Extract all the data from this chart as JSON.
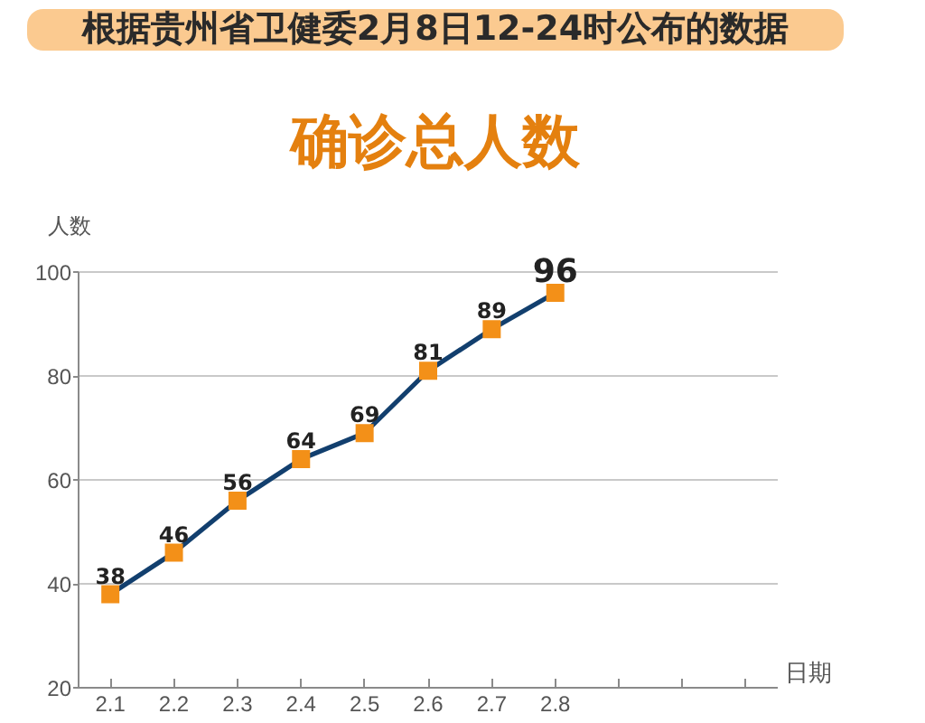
{
  "chart_data": {
    "type": "line",
    "subtitle": "根据贵州省卫健委2月8日12-24时公布的数据",
    "title": "确诊总人数",
    "xlabel": "日期",
    "ylabel": "人数",
    "x": [
      2.1,
      2.2,
      2.3,
      2.4,
      2.5,
      2.6,
      2.7,
      2.8
    ],
    "xlim": [
      2.05,
      3.15
    ],
    "xticks": [
      2.1,
      2.2,
      2.3,
      2.4,
      2.5,
      2.6,
      2.7,
      2.8,
      {
        "value": 2.9,
        "label": null
      },
      {
        "value": 3.0,
        "label": null
      },
      {
        "value": 3.1,
        "label": null
      }
    ],
    "ylim": [
      20,
      100
    ],
    "yticks": [
      20,
      40,
      60,
      80,
      100
    ],
    "series": [
      {
        "color": "#123f6e",
        "colors": [
          "#f39018",
          "#f39018",
          "#f39018",
          "#f39018",
          "#f39018",
          "#f39018",
          "#f39018",
          "#f39018"
        ],
        "values": [
          38,
          46,
          56,
          64,
          69,
          81,
          89,
          96
        ]
      }
    ],
    "marker": "square",
    "data_labels": true,
    "grid": "y"
  }
}
